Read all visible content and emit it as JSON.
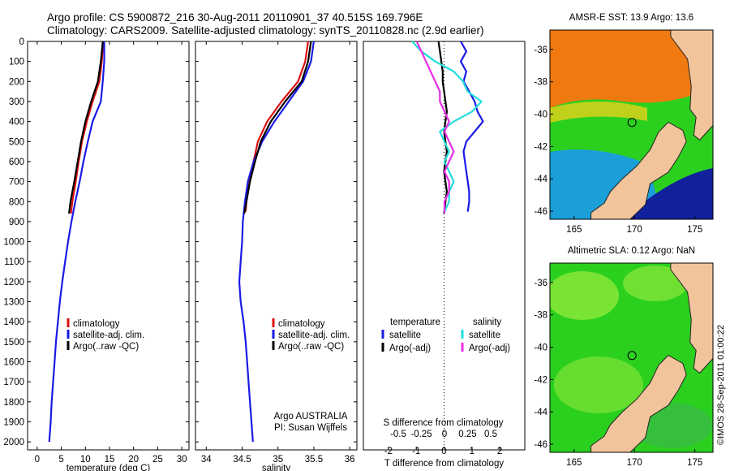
{
  "header": {
    "line1": "Argo profile: CS 5900872_216 30-Aug-2011 20110901_37 40.515S 169.796E",
    "line2": "Climatology: CARS2009. Satellite-adjusted climatology: synTS_20110828.nc (2.9d earlier)"
  },
  "colors": {
    "climatology": "#dd1111",
    "satellite": "#1a1ae6",
    "argo": "#000000",
    "satellite_s": "#22dddd",
    "argo_s": "#e62ee6"
  },
  "chart_data": [
    {
      "type": "line",
      "xlabel": "temperature (deg C)",
      "xticks": [
        0,
        5,
        10,
        15,
        20,
        25,
        30
      ],
      "xlim": [
        -2,
        31.5
      ],
      "yticks": [
        0,
        100,
        200,
        300,
        400,
        500,
        600,
        700,
        800,
        900,
        1000,
        1100,
        1200,
        1300,
        1400,
        1500,
        1600,
        1700,
        1800,
        1900,
        2000
      ],
      "ylim": [
        0,
        2040
      ],
      "legend": [
        "climatology",
        "satellite-adj. clim.",
        "Argo(..raw -QC)"
      ],
      "series": [
        {
          "name": "climatology",
          "color": "#dd1111",
          "depth": [
            0,
            100,
            200,
            300,
            400,
            500,
            600,
            700,
            800,
            860
          ],
          "values": [
            13.7,
            13.4,
            12.9,
            11.5,
            10.3,
            9.3,
            8.6,
            8.0,
            7.3,
            7.0
          ]
        },
        {
          "name": "satellite-adj. clim.",
          "color": "#1a1ae6",
          "depth": [
            0,
            100,
            200,
            300,
            400,
            500,
            600,
            700,
            800,
            900,
            1000,
            1100,
            1200,
            1300,
            1400,
            1500,
            1600,
            1700,
            1800,
            1900,
            2000
          ],
          "values": [
            13.9,
            13.9,
            13.6,
            13.2,
            11.5,
            10.5,
            9.6,
            8.8,
            7.9,
            7.1,
            6.4,
            5.8,
            5.2,
            4.7,
            4.3,
            3.9,
            3.6,
            3.3,
            3.0,
            2.8,
            2.5
          ]
        },
        {
          "name": "Argo(..raw -QC)",
          "color": "#000000",
          "depth": [
            0,
            100,
            200,
            300,
            400,
            500,
            600,
            700,
            800,
            860
          ],
          "values": [
            13.6,
            13.2,
            12.6,
            11.2,
            10.0,
            9.1,
            8.4,
            7.7,
            6.9,
            6.6
          ]
        }
      ],
      "annotations": []
    },
    {
      "type": "line",
      "xlabel": "salinity",
      "xticks": [
        "34",
        "34.5",
        "35",
        "35.5",
        "36"
      ],
      "xlim": [
        33.85,
        36.1
      ],
      "yticks": [
        0,
        100,
        200,
        300,
        400,
        500,
        600,
        700,
        800,
        900,
        1000,
        1100,
        1200,
        1300,
        1400,
        1500,
        1600,
        1700,
        1800,
        1900,
        2000
      ],
      "ylim": [
        0,
        2040
      ],
      "legend": [
        "climatology",
        "satellite-adj. clim.",
        "Argo(..raw -QC)"
      ],
      "series": [
        {
          "name": "climatology",
          "color": "#dd1111",
          "depth": [
            0,
            100,
            200,
            300,
            400,
            500,
            600,
            700,
            800,
            850
          ],
          "values": [
            35.42,
            35.38,
            35.28,
            35.05,
            34.85,
            34.72,
            34.66,
            34.6,
            34.56,
            34.55
          ]
        },
        {
          "name": "satellite-adj. clim.",
          "color": "#1a1ae6",
          "depth": [
            0,
            100,
            200,
            300,
            400,
            500,
            600,
            700,
            800,
            900,
            1000,
            1100,
            1200,
            1300,
            1400,
            1500,
            1600,
            1700,
            1800,
            1900,
            2000
          ],
          "values": [
            35.5,
            35.46,
            35.35,
            35.15,
            34.95,
            34.78,
            34.66,
            34.58,
            34.54,
            34.51,
            34.5,
            34.48,
            34.46,
            34.48,
            34.52,
            34.55,
            34.57,
            34.59,
            34.61,
            34.63,
            34.65
          ]
        },
        {
          "name": "Argo(..raw -QC)",
          "color": "#000000",
          "depth": [
            0,
            100,
            200,
            300,
            400,
            500,
            600,
            700,
            800,
            860
          ],
          "values": [
            35.46,
            35.42,
            35.33,
            35.1,
            34.9,
            34.76,
            34.68,
            34.61,
            34.56,
            34.53
          ]
        }
      ],
      "annotations": [
        "Argo AUSTRALIA",
        "PI: Susan Wijffels"
      ]
    },
    {
      "type": "line",
      "top_label": "S difference from climatology",
      "top_ticks": [
        "-0.5",
        "-0.25",
        "0",
        "0.25",
        "0.5"
      ],
      "xlabel": "T difference from climatology",
      "xticks": [
        "-2",
        "-1",
        "0",
        "1",
        "2"
      ],
      "xlim": [
        -2.9,
        2.9
      ],
      "ylim": [
        0,
        2040
      ],
      "legend": {
        "temperature_header": "temperature",
        "salinity_header": "salinity",
        "items": [
          "satellite",
          "Argo(-adj)",
          "satellite",
          "Argo(-adj)"
        ]
      },
      "series": [
        {
          "name": "temperature satellite",
          "color": "#1a1ae6",
          "depth": [
            0,
            50,
            100,
            150,
            200,
            250,
            300,
            350,
            400,
            450,
            500,
            550,
            600,
            650,
            700,
            750,
            800,
            850
          ],
          "values": [
            0.6,
            0.8,
            0.6,
            0.8,
            0.7,
            0.9,
            1.1,
            1.2,
            1.4,
            1.1,
            0.8,
            0.7,
            0.75,
            0.8,
            0.85,
            0.9,
            0.9,
            0.85
          ]
        },
        {
          "name": "temperature Argo(-adj)",
          "color": "#000000",
          "depth": [
            0,
            50,
            100,
            150,
            200,
            250,
            300,
            350,
            400,
            450,
            500,
            550,
            600,
            650,
            700,
            750,
            800,
            860
          ],
          "values": [
            -0.2,
            -0.15,
            -0.1,
            -0.05,
            -0.05,
            0.0,
            0.05,
            0.1,
            0.05,
            0.0,
            0.05,
            0.1,
            0.05,
            0.0,
            0.05,
            0.1,
            0.05,
            0.0
          ]
        },
        {
          "name": "salinity satellite",
          "color": "#22dddd",
          "depth": [
            0,
            50,
            100,
            150,
            200,
            250,
            300,
            350,
            400,
            450,
            500,
            550,
            600,
            650,
            700,
            750,
            800,
            850
          ],
          "values": [
            -0.35,
            -0.25,
            -0.1,
            0.1,
            0.2,
            0.25,
            0.4,
            0.3,
            0.1,
            -0.05,
            0.0,
            0.05,
            0.0,
            0.05,
            0.1,
            0.05,
            0.05,
            0.0
          ]
        },
        {
          "name": "salinity Argo(-adj)",
          "color": "#e62ee6",
          "depth": [
            0,
            50,
            100,
            150,
            200,
            250,
            300,
            350,
            400,
            450,
            500,
            550,
            600,
            650,
            700,
            750,
            800,
            860
          ],
          "values": [
            -0.3,
            -0.25,
            -0.2,
            -0.15,
            -0.1,
            -0.05,
            -0.05,
            0.0,
            0.05,
            0.0,
            0.05,
            0.1,
            0.05,
            0.0,
            0.05,
            0.05,
            0.0,
            0.0
          ]
        }
      ]
    },
    {
      "type": "heatmap",
      "title": "AMSR-E SST: 13.9  Argo: 13.6",
      "xticks": [
        "165",
        "170",
        "175"
      ],
      "yticks": [
        "-36",
        "-38",
        "-40",
        "-42",
        "-44",
        "-46"
      ],
      "xlim": [
        163,
        176.5
      ],
      "ylim": [
        -46.5,
        -34.8
      ],
      "float_position": {
        "lon": 169.796,
        "lat": -40.515
      },
      "colors": {
        "warm": "#f07a10",
        "mid": "#2bd01f",
        "cool": "#1a9fd8",
        "cold": "#11219b",
        "land": "#f2c49b"
      }
    },
    {
      "type": "heatmap",
      "title": "Altimetric SLA: 0.12  Argo: NaN",
      "xticks": [
        "165",
        "170",
        "175"
      ],
      "yticks": [
        "-36",
        "-38",
        "-40",
        "-42",
        "-44",
        "-46"
      ],
      "xlim": [
        163,
        176.5
      ],
      "ylim": [
        -46.5,
        -34.8
      ],
      "float_position": {
        "lon": 169.796,
        "lat": -40.515
      },
      "colors": {
        "high": "#8fe83a",
        "mid": "#2bd01f",
        "low": "#3ab84a",
        "land": "#f2c49b"
      }
    }
  ],
  "credit": "©IMOS 28-Sep-2011 01:00:22"
}
